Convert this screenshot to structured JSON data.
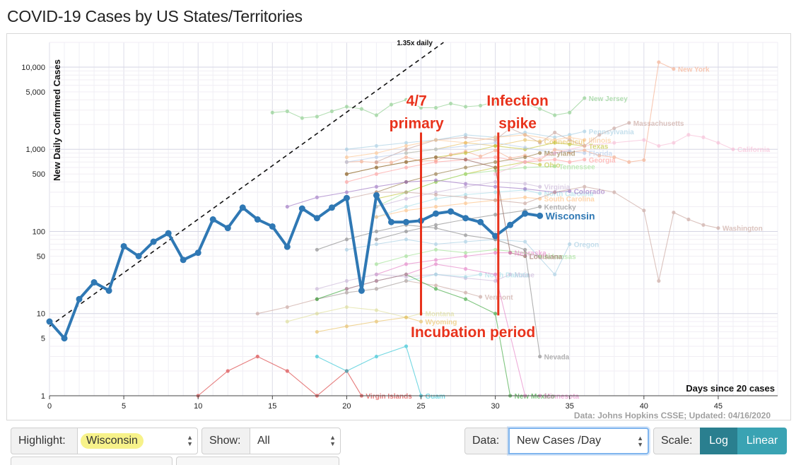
{
  "page_title": "COVID-19 Cases by US States/Territories",
  "controls": {
    "highlight_label": "Highlight:",
    "highlight_value": "Wisconsin",
    "show_label": "Show:",
    "show_value": "All",
    "data_label": "Data:",
    "data_value": "New Cases /Day",
    "scale_label": "Scale:",
    "scale_log": "Log",
    "scale_linear": "Linear"
  },
  "colors": {
    "highlight": "#2f78b4",
    "annotation": "#e8321c",
    "scale_active": "#2a7f8f",
    "scale_inactive": "#3aa3b3",
    "highlight_marker": "#f7f28a"
  },
  "chart_data": {
    "type": "line",
    "ylabel": "New Daily Confirmed Cases",
    "xlabel": "Days since 20 cases",
    "y_scale": "log",
    "xlim": [
      0,
      49
    ],
    "ylim": [
      1,
      20000
    ],
    "x_ticks": [
      0,
      5,
      10,
      15,
      20,
      25,
      30,
      35,
      40,
      45
    ],
    "y_ticks": [
      {
        "value": 1,
        "label": "1"
      },
      {
        "value": 5,
        "label": "5"
      },
      {
        "value": 10,
        "label": "10"
      },
      {
        "value": 50,
        "label": "50"
      },
      {
        "value": 100,
        "label": "100"
      },
      {
        "value": 500,
        "label": "500"
      },
      {
        "value": 1000,
        "label": "1,000"
      },
      {
        "value": 5000,
        "label": "5,000"
      },
      {
        "value": 10000,
        "label": "10,000"
      }
    ],
    "source_note": "Data: Johns Hopkins CSSE; Updated: 04/16/2020",
    "reference_line": {
      "label": "1.35x daily",
      "start_value": 7,
      "rate": 1.35
    },
    "highlight_series": {
      "name": "Wisconsin",
      "x": [
        0,
        1,
        2,
        3,
        4,
        5,
        6,
        7,
        8,
        9,
        10,
        11,
        12,
        13,
        14,
        15,
        16,
        17,
        18,
        19,
        20,
        21,
        22,
        23,
        24,
        25,
        26,
        27,
        28,
        29,
        30,
        31,
        32,
        33
      ],
      "values": [
        8,
        5,
        15,
        24,
        19,
        66,
        50,
        75,
        95,
        45,
        55,
        140,
        110,
        195,
        140,
        115,
        65,
        190,
        145,
        195,
        255,
        19,
        275,
        130,
        130,
        135,
        165,
        175,
        145,
        130,
        88,
        120,
        165,
        155
      ]
    },
    "series": [
      {
        "name": "New York",
        "color": "#f4a582",
        "x": [
          20,
          21,
          22,
          23,
          24,
          25,
          26,
          27,
          28,
          29,
          30,
          31,
          32,
          33,
          34,
          35,
          36,
          37,
          38,
          39,
          40,
          41,
          42
        ],
        "values": [
          700,
          710,
          690,
          690,
          800,
          720,
          730,
          860,
          940,
          820,
          970,
          780,
          840,
          740,
          990,
          920,
          970,
          840,
          800,
          700,
          740,
          11500,
          9500
        ]
      },
      {
        "name": "New Jersey",
        "color": "#7fc97f",
        "x": [
          15,
          16,
          17,
          18,
          19,
          20,
          21,
          22,
          23,
          24,
          25,
          26,
          27,
          28,
          29,
          30,
          31,
          32,
          33,
          34,
          35,
          36
        ],
        "values": [
          2800,
          2900,
          2400,
          2500,
          2900,
          3300,
          3100,
          2600,
          3500,
          4000,
          3200,
          3200,
          3600,
          3300,
          3400,
          3800,
          4000,
          3600,
          3100,
          2600,
          2800,
          4200
        ]
      },
      {
        "name": "Massachusetts",
        "color": "#c49c94",
        "x": [
          22,
          24,
          26,
          28,
          30,
          31,
          32,
          33,
          34,
          35,
          36,
          37,
          38,
          39
        ],
        "values": [
          700,
          1000,
          1300,
          1400,
          1300,
          1800,
          1500,
          1200,
          1600,
          1300,
          1100,
          1500,
          1800,
          2100
        ]
      },
      {
        "name": "Pennsylvania",
        "color": "#9ecae1",
        "x": [
          20,
          22,
          24,
          26,
          28,
          30,
          32,
          34,
          35,
          36
        ],
        "values": [
          1000,
          1100,
          1200,
          1300,
          1500,
          1400,
          1600,
          1400,
          1500,
          1650
        ]
      },
      {
        "name": "Illinois",
        "color": "#fdc086",
        "x": [
          20,
          22,
          24,
          26,
          28,
          30,
          32,
          34,
          35,
          36
        ],
        "values": [
          800,
          900,
          1100,
          1300,
          1200,
          1400,
          1500,
          1300,
          1400,
          1300
        ]
      },
      {
        "name": "Connecticut",
        "color": "#e7ba52",
        "x": [
          24,
          26,
          28,
          30,
          32,
          33
        ],
        "values": [
          900,
          1000,
          1200,
          1100,
          1300,
          1250
        ]
      },
      {
        "name": "Texas",
        "color": "#bcbd22",
        "x": [
          20,
          22,
          24,
          26,
          28,
          30,
          32,
          34,
          35,
          36
        ],
        "values": [
          500,
          600,
          700,
          800,
          900,
          1100,
          1000,
          1200,
          1150,
          1100
        ]
      },
      {
        "name": "Florida",
        "color": "#aec7e8",
        "x": [
          20,
          22,
          24,
          26,
          28,
          30,
          32,
          34,
          35,
          36
        ],
        "values": [
          700,
          800,
          900,
          1000,
          1100,
          1200,
          1050,
          900,
          950,
          900
        ]
      },
      {
        "name": "Maryland",
        "color": "#8c6d31",
        "x": [
          22,
          24,
          26,
          28,
          30,
          32,
          33
        ],
        "values": [
          300,
          400,
          500,
          600,
          700,
          800,
          900
        ]
      },
      {
        "name": "Ohio",
        "color": "#bcbd22",
        "x": [
          22,
          24,
          26,
          28,
          30,
          32,
          33
        ],
        "values": [
          250,
          300,
          400,
          500,
          600,
          700,
          650
        ]
      },
      {
        "name": "Georgia",
        "color": "#ff9896",
        "x": [
          20,
          22,
          24,
          26,
          28,
          30,
          32,
          34,
          35,
          36
        ],
        "values": [
          400,
          500,
          600,
          700,
          750,
          800,
          700,
          750,
          700,
          750
        ]
      },
      {
        "name": "Tennessee",
        "color": "#98df8a",
        "x": [
          22,
          24,
          26,
          28,
          30,
          32,
          34
        ],
        "values": [
          200,
          300,
          400,
          500,
          550,
          600,
          620
        ]
      },
      {
        "name": "Virginia",
        "color": "#c5b0d5",
        "x": [
          22,
          24,
          26,
          28,
          30,
          32,
          33
        ],
        "values": [
          200,
          250,
          300,
          350,
          400,
          380,
          350
        ]
      },
      {
        "name": "North Carolina",
        "color": "#9edae5",
        "x": [
          22,
          24,
          26,
          28,
          30,
          32,
          33
        ],
        "values": [
          150,
          200,
          250,
          280,
          300,
          320,
          290
        ]
      },
      {
        "name": "Colorado",
        "color": "#9467bd",
        "x": [
          16,
          18,
          20,
          22,
          24,
          26,
          28,
          30,
          32,
          34,
          35
        ],
        "values": [
          200,
          260,
          300,
          350,
          400,
          420,
          380,
          350,
          330,
          300,
          310
        ]
      },
      {
        "name": "South Carolina",
        "color": "#ffbb78",
        "x": [
          22,
          24,
          26,
          28,
          30,
          32,
          33
        ],
        "values": [
          150,
          180,
          200,
          220,
          240,
          260,
          250
        ]
      },
      {
        "name": "Kentucky",
        "color": "#7f7f7f",
        "x": [
          22,
          24,
          26,
          28,
          30,
          32,
          33
        ],
        "values": [
          80,
          100,
          120,
          140,
          160,
          180,
          200
        ]
      },
      {
        "name": "Washington",
        "color": "#c49c94",
        "x": [
          20,
          22,
          24,
          26,
          28,
          30,
          32,
          34,
          36,
          38,
          40,
          41,
          42,
          43,
          44,
          45
        ],
        "values": [
          250,
          300,
          300,
          280,
          260,
          240,
          220,
          300,
          350,
          300,
          180,
          25,
          170,
          140,
          120,
          110
        ]
      },
      {
        "name": "California",
        "color": "#f7b6d2",
        "x": [
          30,
          32,
          34,
          36,
          38,
          40,
          41,
          42,
          43,
          44,
          45,
          46
        ],
        "values": [
          500,
          700,
          900,
          1100,
          1200,
          1300,
          1100,
          1200,
          1500,
          1400,
          1200,
          1000
        ]
      },
      {
        "name": "Oregon",
        "color": "#9ecae1",
        "x": [
          20,
          22,
          24,
          26,
          28,
          30,
          32,
          34,
          35
        ],
        "values": [
          60,
          70,
          80,
          70,
          75,
          80,
          75,
          30,
          70
        ]
      },
      {
        "name": "Arkansas",
        "color": "#98df8a",
        "x": [
          22,
          24,
          26,
          28,
          30,
          32,
          33
        ],
        "values": [
          40,
          50,
          60,
          55,
          60,
          55,
          50
        ]
      },
      {
        "name": "Louisiana",
        "color": "#8c564b",
        "x": [
          20,
          22,
          24,
          26,
          28,
          30,
          31,
          32
        ],
        "values": [
          500,
          600,
          700,
          800,
          750,
          600,
          55,
          50
        ]
      },
      {
        "name": "Nebraska",
        "color": "#e377c2",
        "x": [
          22,
          24,
          26,
          28,
          30,
          31
        ],
        "values": [
          30,
          40,
          45,
          50,
          55,
          55
        ]
      },
      {
        "name": "Maine",
        "color": "#c5b0d5",
        "x": [
          18,
          20,
          22,
          24,
          26,
          28,
          30,
          31
        ],
        "values": [
          20,
          25,
          30,
          28,
          30,
          27,
          25,
          30
        ]
      },
      {
        "name": "North Dakota",
        "color": "#9edae5",
        "x": [
          18,
          20,
          22,
          24,
          26,
          28,
          29
        ],
        "values": [
          15,
          18,
          20,
          25,
          30,
          28,
          30
        ]
      },
      {
        "name": "Vermont",
        "color": "#c49c94",
        "x": [
          14,
          16,
          18,
          20,
          22,
          24,
          26,
          28,
          29
        ],
        "values": [
          10,
          12,
          15,
          18,
          20,
          25,
          22,
          18,
          16
        ]
      },
      {
        "name": "Montana",
        "color": "#dbdb8d",
        "x": [
          16,
          18,
          20,
          22,
          24,
          25
        ],
        "values": [
          8,
          10,
          12,
          11,
          9,
          10
        ]
      },
      {
        "name": "Wyoming",
        "color": "#e7ba52",
        "x": [
          18,
          20,
          22,
          24,
          25
        ],
        "values": [
          6,
          7,
          8,
          9,
          8
        ]
      },
      {
        "name": "Nevada",
        "color": "#7f7f7f",
        "x": [
          18,
          20,
          22,
          24,
          26,
          28,
          30,
          32,
          33
        ],
        "values": [
          60,
          80,
          100,
          120,
          110,
          90,
          80,
          60,
          3
        ]
      },
      {
        "name": "Virgin Islands",
        "color": "#d62728",
        "x": [
          10,
          12,
          14,
          16,
          18,
          20,
          21
        ],
        "values": [
          1,
          2,
          3,
          2,
          1,
          2,
          1
        ]
      },
      {
        "name": "Guam",
        "color": "#17becf",
        "x": [
          18,
          20,
          22,
          24,
          25
        ],
        "values": [
          3,
          2,
          3,
          4,
          1
        ]
      },
      {
        "name": "New Mexico",
        "color": "#2ca02c",
        "x": [
          18,
          20,
          22,
          24,
          26,
          28,
          30,
          31
        ],
        "values": [
          15,
          20,
          25,
          30,
          20,
          15,
          10,
          1
        ]
      },
      {
        "name": "Minnesota",
        "color": "#e377c2",
        "x": [
          20,
          22,
          24,
          26,
          28,
          30,
          32,
          33
        ],
        "values": [
          20,
          25,
          30,
          40,
          35,
          30,
          1,
          1
        ]
      }
    ],
    "annotations": [
      {
        "lines": [
          "4/7",
          "primary"
        ],
        "color": "#e8321c"
      },
      {
        "lines": [
          "Infection",
          "spike"
        ],
        "color": "#e8321c"
      },
      {
        "lines": [
          "Incubation period"
        ],
        "color": "#e8321c"
      }
    ],
    "annotation_bars": [
      {
        "x": 25,
        "y_top": 1600,
        "y_bottom": 9.5
      },
      {
        "x": 30.2,
        "y_top": 1600,
        "y_bottom": 9.5
      }
    ]
  }
}
